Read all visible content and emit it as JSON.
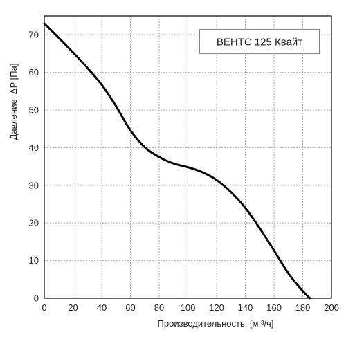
{
  "chart_data": {
    "type": "line",
    "legend_text": "ВЕНТС 125 Квайт",
    "legend_placement": "top-right",
    "xlabel": "Производительность, [м ³/ч]",
    "ylabel": "Давление, ΔP [Па]",
    "xlim": [
      0,
      200
    ],
    "ylim": [
      0,
      75
    ],
    "x_ticks": [
      "0",
      "20",
      "40",
      "60",
      "80",
      "100",
      "120",
      "140",
      "160",
      "180",
      "200"
    ],
    "y_ticks": [
      "0",
      "10",
      "20",
      "30",
      "40",
      "50",
      "60",
      "70"
    ],
    "grid": true,
    "line_color": "#000000",
    "series": [
      {
        "x": [
          0,
          10,
          20,
          30,
          40,
          50,
          60,
          70,
          80,
          90,
          100,
          110,
          120,
          130,
          140,
          150,
          160,
          170,
          180,
          185
        ],
        "y": [
          73,
          69.2,
          65.3,
          61.2,
          56.7,
          51,
          44.6,
          40.1,
          37.5,
          35.8,
          34.8,
          33.5,
          31.4,
          28.2,
          24,
          18.6,
          12.7,
          6.6,
          1.9,
          0
        ]
      }
    ]
  }
}
